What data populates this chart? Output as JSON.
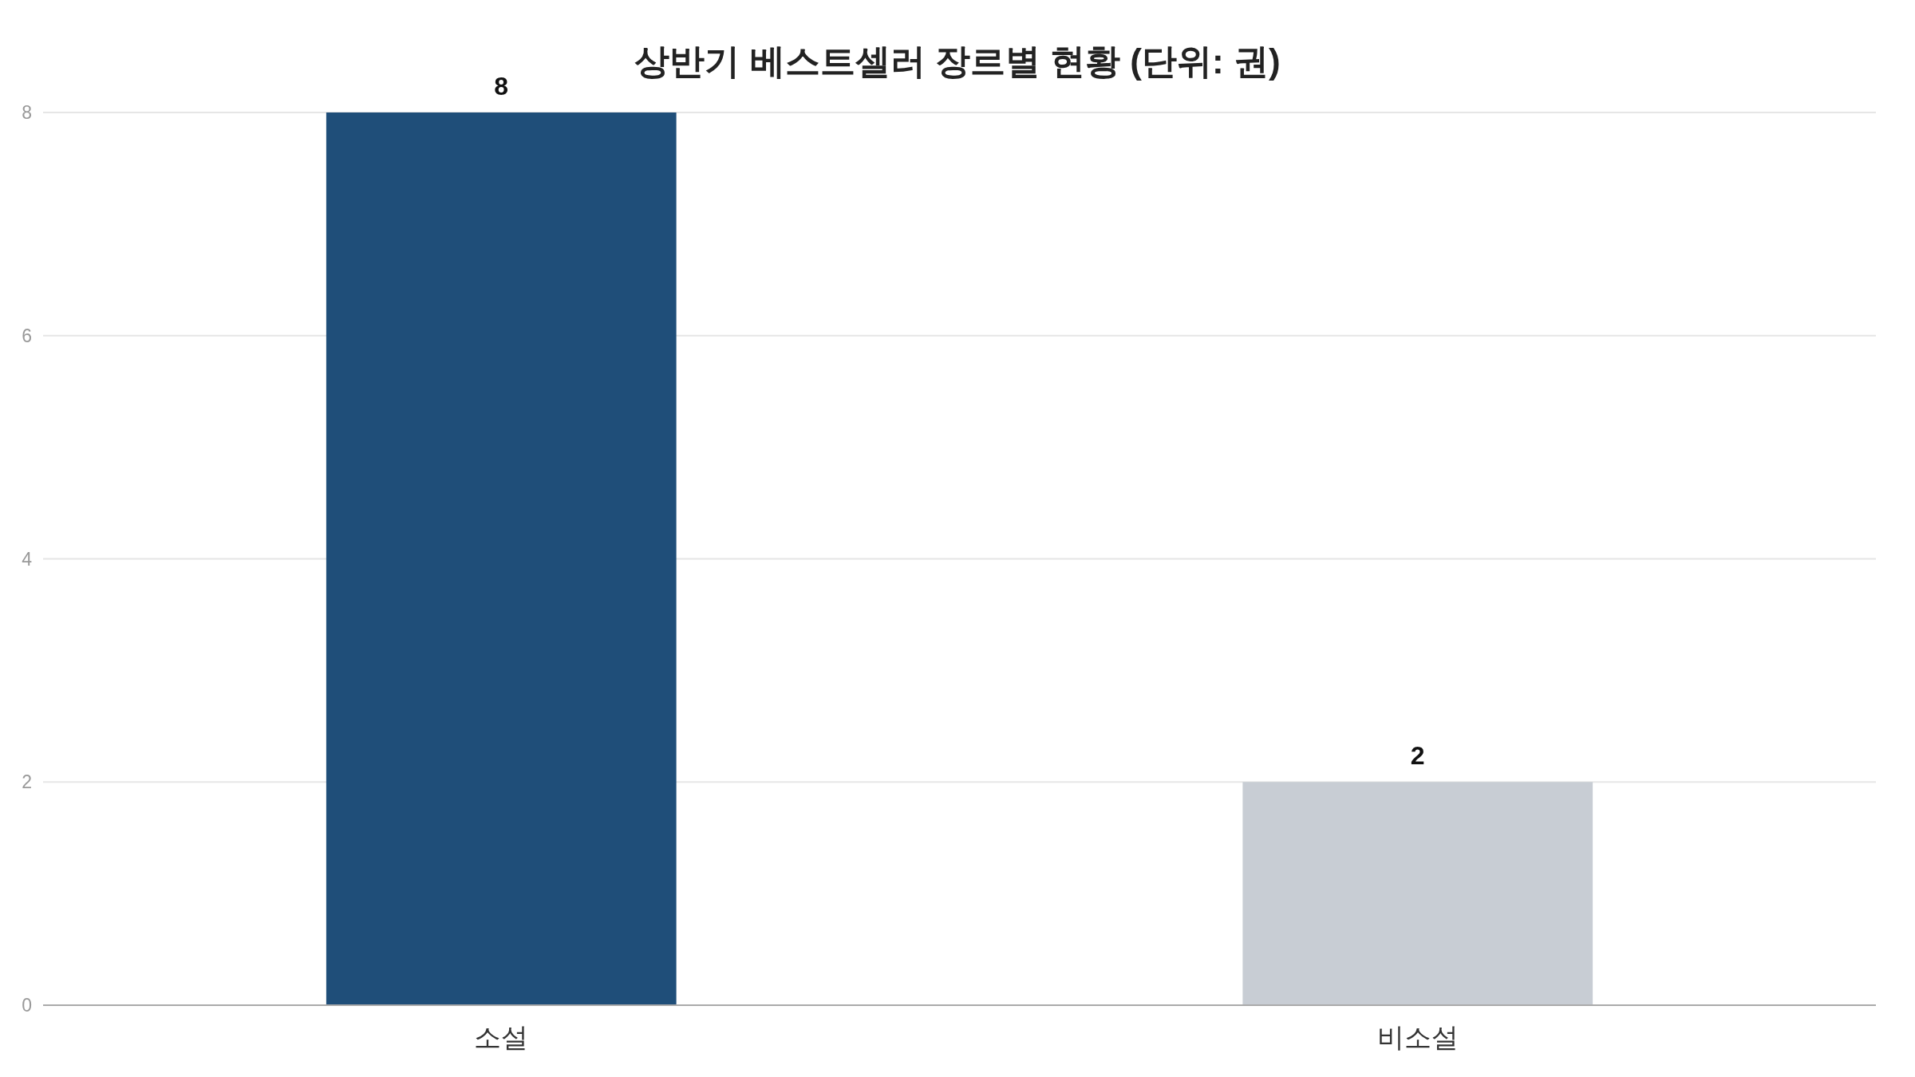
{
  "chart_data": {
    "type": "bar",
    "title": "상반기 베스트셀러 장르별 현황 (단위: 권)",
    "categories": [
      "소설",
      "비소설"
    ],
    "values": [
      8,
      2
    ],
    "colors": [
      "#1f4e79",
      "#c8cdd4"
    ],
    "ylim": [
      0,
      8
    ],
    "yticks": [
      0,
      2,
      4,
      6,
      8
    ],
    "grid": "y",
    "data_labels": true
  }
}
